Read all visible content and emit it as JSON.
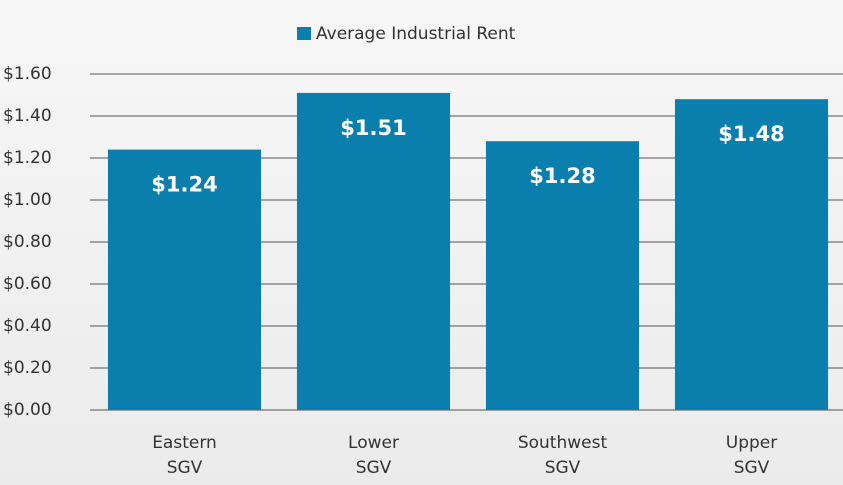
{
  "chart_data": {
    "type": "bar",
    "categories": [
      "Eastern SGV",
      "Lower SGV",
      "Southwest SGV",
      "Upper SGV"
    ],
    "series": [
      {
        "name": "Average Industrial Rent",
        "color": "#0a7fae",
        "values": [
          1.24,
          1.51,
          1.28,
          1.48
        ],
        "value_labels": [
          "$1.24",
          "$1.51",
          "$1.28",
          "$1.48"
        ]
      }
    ],
    "ylim": [
      0,
      1.6
    ],
    "yticks": [
      {
        "value": 0,
        "label": "$0.00"
      },
      {
        "value": 0.2,
        "label": "$0.20"
      },
      {
        "value": 0.4,
        "label": "$0.40"
      },
      {
        "value": 0.6,
        "label": "$0.60"
      },
      {
        "value": 0.8,
        "label": "$0.80"
      },
      {
        "value": 1.0,
        "label": "$1.00"
      },
      {
        "value": 1.2,
        "label": "$1.20"
      },
      {
        "value": 1.4,
        "label": "$1.40"
      },
      {
        "value": 1.6,
        "label": "$1.60"
      }
    ],
    "grid": true,
    "legend": "top"
  }
}
